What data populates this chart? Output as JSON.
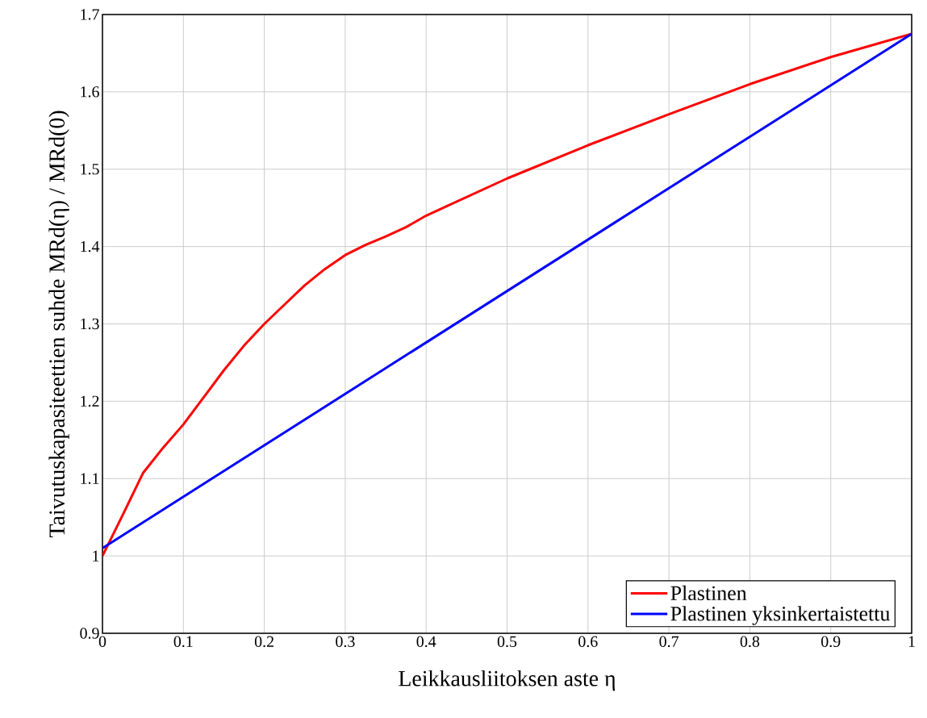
{
  "chart_data": {
    "type": "line",
    "xlabel": "Leikkausliitoksen aste η",
    "ylabel": "Taivutuskapasiteettien suhde MRd(η) / MRd(0)",
    "xlim": [
      0,
      1
    ],
    "ylim": [
      0.9,
      1.7
    ],
    "xticks": [
      0,
      0.1,
      0.2,
      0.3,
      0.4,
      0.5,
      0.6,
      0.7,
      0.8,
      0.9,
      1
    ],
    "yticks": [
      0.9,
      1,
      1.1,
      1.2,
      1.3,
      1.4,
      1.5,
      1.6,
      1.7
    ],
    "grid": true,
    "legend": "bottom right",
    "marker": "none",
    "line_style": "solid",
    "series": [
      {
        "name": "Plastinen",
        "color": "#ff0000",
        "x": [
          0,
          0.025,
          0.05,
          0.075,
          0.1,
          0.125,
          0.15,
          0.175,
          0.2,
          0.225,
          0.25,
          0.275,
          0.3,
          0.325,
          0.35,
          0.375,
          0.4,
          0.5,
          0.6,
          0.7,
          0.8,
          0.9,
          1
        ],
        "values": [
          1.0,
          1.053,
          1.107,
          1.14,
          1.17,
          1.205,
          1.24,
          1.272,
          1.3,
          1.325,
          1.35,
          1.371,
          1.389,
          1.402,
          1.413,
          1.425,
          1.44,
          1.488,
          1.531,
          1.571,
          1.61,
          1.645,
          1.675
        ]
      },
      {
        "name": "Plastinen yksinkertaistettu",
        "color": "#0000ff",
        "x": [
          0,
          1
        ],
        "values": [
          1.01,
          1.675
        ]
      }
    ]
  }
}
